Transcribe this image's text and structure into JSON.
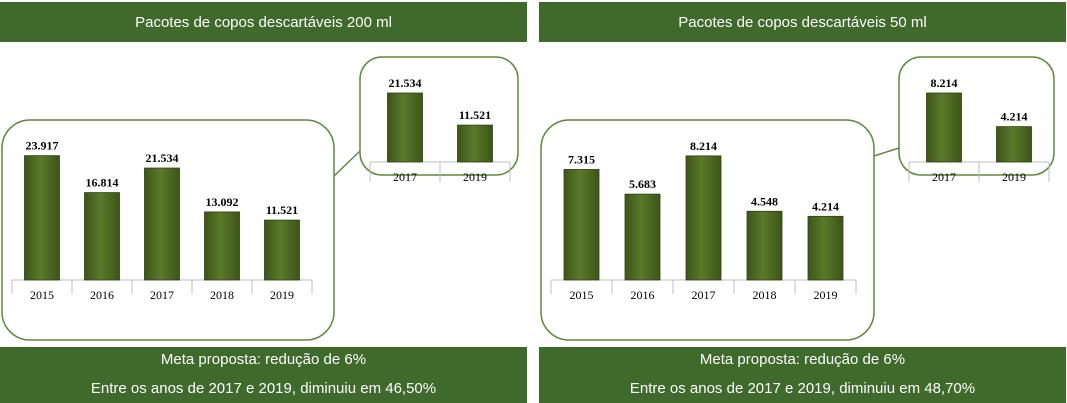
{
  "panels": [
    {
      "title": "Pacotes de copos descartáveis 200 ml",
      "footer_line1": "Meta proposta: redução de 6%",
      "footer_line2": "Entre os anos de 2017 e 2019, diminuiu em 46,50%"
    },
    {
      "title": "Pacotes de copos descartáveis 50 ml",
      "footer_line1": "Meta proposta: redução de 6%",
      "footer_line2": "Entre os anos de 2017 e 2019, diminuiu em 48,70%"
    }
  ],
  "colors": {
    "header_bg": "#3f6a2c",
    "bar": "#4f6b22",
    "callout_border": "#5d8a3a"
  },
  "chart_data": [
    {
      "type": "bar",
      "title": "Pacotes de copos descartáveis 200 ml",
      "categories": [
        "2015",
        "2016",
        "2017",
        "2018",
        "2019"
      ],
      "values": [
        23917,
        16814,
        21534,
        13092,
        11521
      ],
      "labels": [
        "23.917",
        "16.814",
        "21.534",
        "13.092",
        "11.521"
      ],
      "ylim": [
        0,
        25000
      ],
      "inset": {
        "categories": [
          "2017",
          "2019"
        ],
        "values": [
          21534,
          11521
        ],
        "labels": [
          "21.534",
          "11.521"
        ]
      }
    },
    {
      "type": "bar",
      "title": "Pacotes de copos descartáveis 50 ml",
      "categories": [
        "2015",
        "2016",
        "2017",
        "2018",
        "2019"
      ],
      "values": [
        7315,
        5683,
        8214,
        4548,
        4214
      ],
      "labels": [
        "7.315",
        "5.683",
        "8.214",
        "4.548",
        "4.214"
      ],
      "ylim": [
        0,
        9000
      ],
      "inset": {
        "categories": [
          "2017",
          "2019"
        ],
        "values": [
          8214,
          4214
        ],
        "labels": [
          "8.214",
          "4.214"
        ]
      }
    }
  ]
}
